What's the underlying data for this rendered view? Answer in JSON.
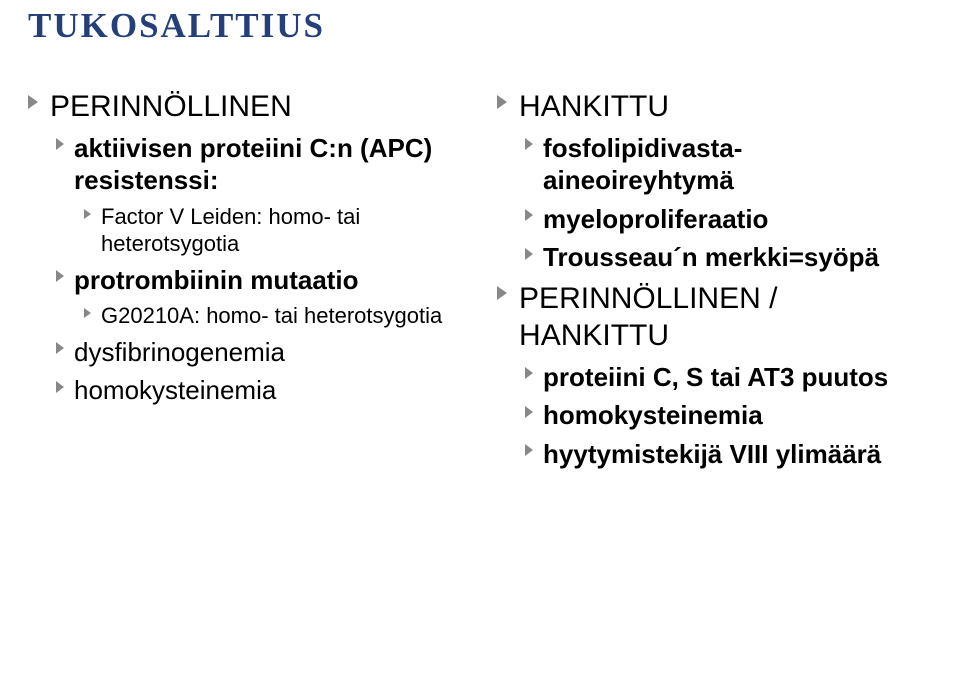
{
  "title": "TUKOSALTTIUS",
  "left": {
    "main": "PERINNÖLLINEN",
    "sub1": {
      "label": "aktiivisen proteiini C:n (APC) resistenssi:",
      "children": [
        "Factor V Leiden: homo- tai heterotsygotia"
      ]
    },
    "sub2": {
      "label": "protrombiinin mutaatio",
      "children": [
        "G20210A: homo- tai heterotsygotia"
      ]
    },
    "sub3": {
      "label": "dysfibrinogenemia"
    },
    "sub4": {
      "label": "homokysteinemia"
    }
  },
  "right": {
    "main1": "HANKITTU",
    "main1_children": [
      "fosfolipidivasta-aineoireyhtymä",
      "myeloproliferaatio",
      "Trousseau´n merkki=syöpä"
    ],
    "main2": "PERINNÖLLINEN / HANKITTU",
    "main2_children": [
      "proteiini C, S tai AT3 puutos",
      "homokysteinemia",
      "hyytymistekijä VIII ylimäärä"
    ]
  },
  "colors": {
    "title": "#243f7a",
    "marker": "#888888",
    "background": "#ffffff",
    "text": "#000000"
  }
}
